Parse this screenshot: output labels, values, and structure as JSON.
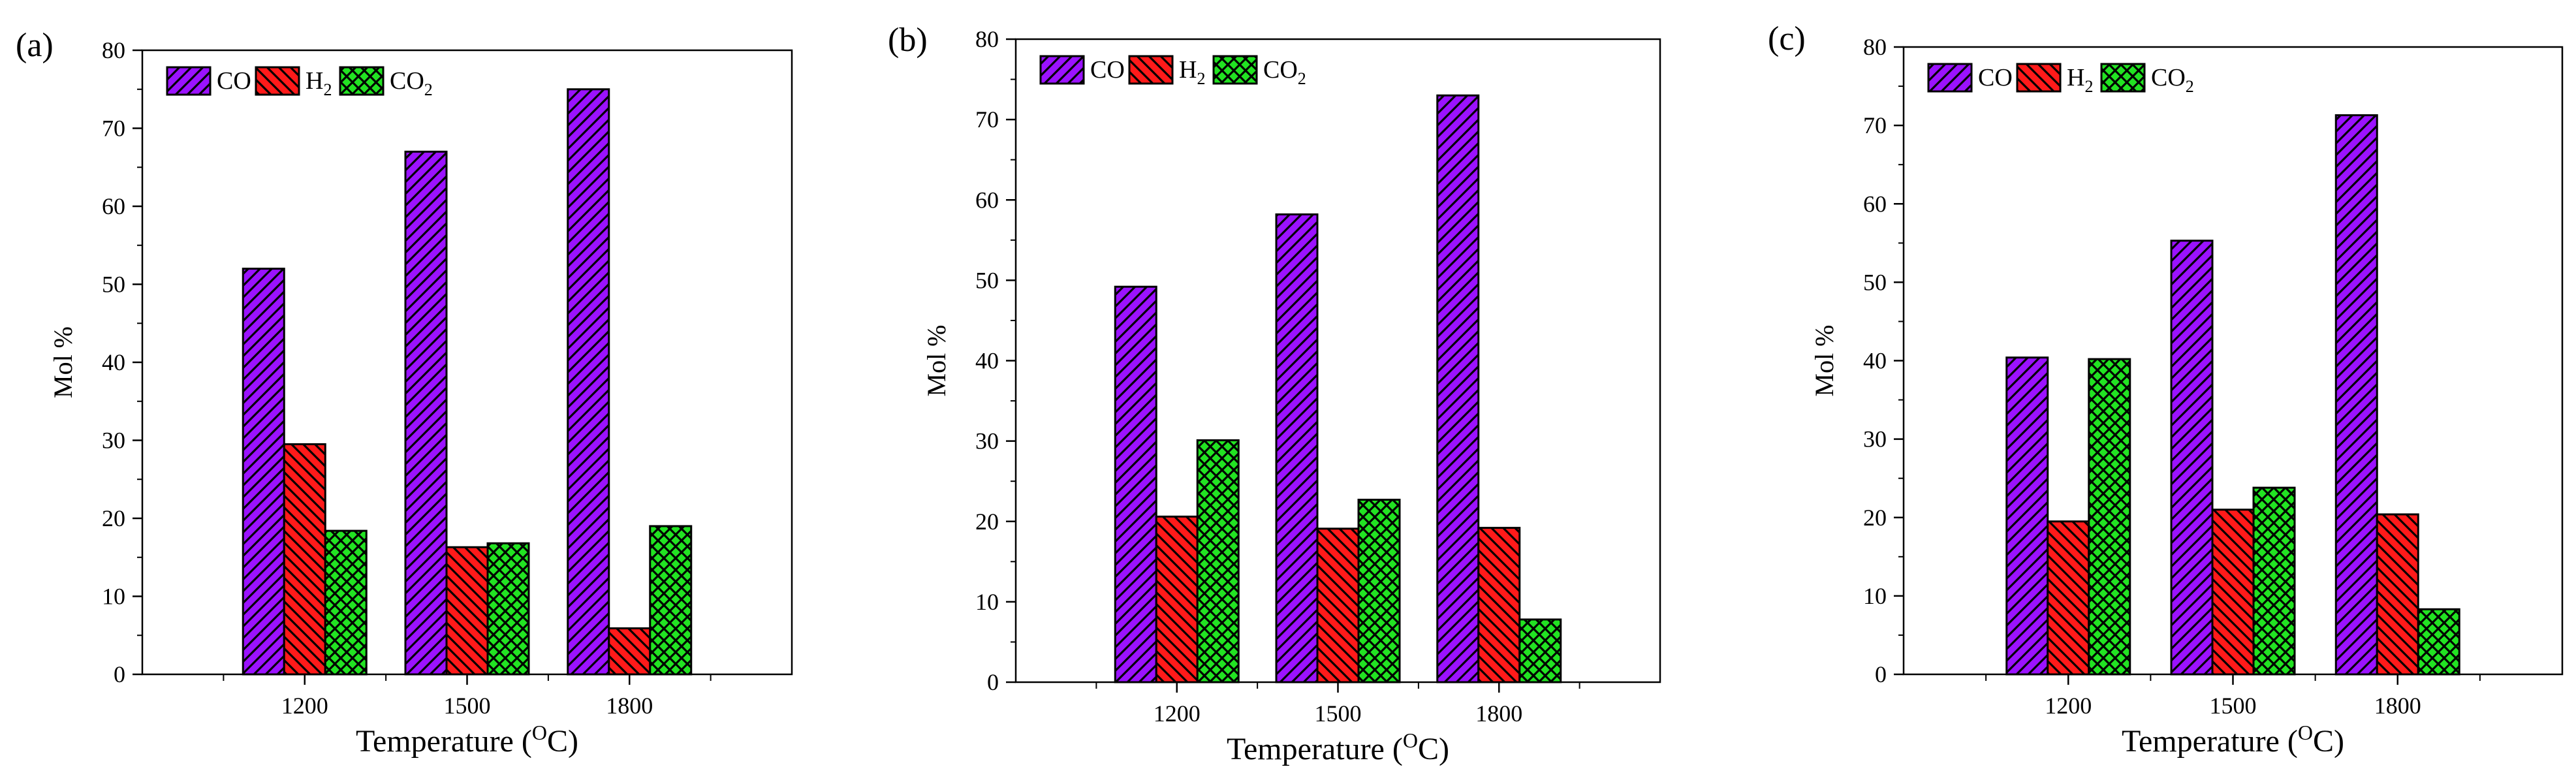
{
  "colors": {
    "co": "#9b12ff",
    "h2": "#ff1a1a",
    "co2": "#22e322",
    "axis": "#000000",
    "background": "#ffffff"
  },
  "patterns": {
    "co": "diagonal-hatch",
    "h2": "back-diagonal-hatch",
    "co2": "crosshatch"
  },
  "chart_data": [
    {
      "type": "bar",
      "panel_label": "(a)",
      "title": "",
      "xlabel": "Temperature",
      "xlabel_unit_prefix": "(",
      "xlabel_unit_sup": "O",
      "xlabel_unit_suffix": "C)",
      "ylabel": "Mol %",
      "ylim": [
        0,
        80
      ],
      "yticks": [
        "0",
        "10",
        "20",
        "30",
        "40",
        "50",
        "60",
        "70",
        "80"
      ],
      "categories": [
        "1200",
        "1500",
        "1800"
      ],
      "legend": {
        "position": "top-left",
        "entries": [
          {
            "key": "co",
            "label": "CO",
            "sub": ""
          },
          {
            "key": "h2",
            "label": "H",
            "sub": "2"
          },
          {
            "key": "co2",
            "label": "CO",
            "sub": "2"
          }
        ]
      },
      "series": [
        {
          "key": "co",
          "name": "CO",
          "values": [
            52.0,
            67.0,
            75.0
          ]
        },
        {
          "key": "h2",
          "name": "H2",
          "values": [
            29.5,
            16.3,
            5.9
          ]
        },
        {
          "key": "co2",
          "name": "CO2",
          "values": [
            18.4,
            16.8,
            19.0
          ]
        }
      ]
    },
    {
      "type": "bar",
      "panel_label": "(b)",
      "title": "",
      "xlabel": "Temperature",
      "xlabel_unit_prefix": "(",
      "xlabel_unit_sup": "O",
      "xlabel_unit_suffix": "C)",
      "ylabel": "Mol %",
      "ylim": [
        0,
        80
      ],
      "yticks": [
        "0",
        "10",
        "20",
        "30",
        "40",
        "50",
        "60",
        "70",
        "80"
      ],
      "categories": [
        "1200",
        "1500",
        "1800"
      ],
      "legend": {
        "position": "top-left",
        "entries": [
          {
            "key": "co",
            "label": "CO",
            "sub": ""
          },
          {
            "key": "h2",
            "label": "H",
            "sub": "2"
          },
          {
            "key": "co2",
            "label": "CO",
            "sub": "2"
          }
        ]
      },
      "series": [
        {
          "key": "co",
          "name": "CO",
          "values": [
            49.2,
            58.2,
            73.0
          ]
        },
        {
          "key": "h2",
          "name": "H2",
          "values": [
            20.6,
            19.1,
            19.2
          ]
        },
        {
          "key": "co2",
          "name": "CO2",
          "values": [
            30.1,
            22.7,
            7.8
          ]
        }
      ]
    },
    {
      "type": "bar",
      "panel_label": "(c)",
      "title": "",
      "xlabel": "Temperature",
      "xlabel_unit_prefix": "(",
      "xlabel_unit_sup": "O",
      "xlabel_unit_suffix": "C)",
      "ylabel": "Mol %",
      "ylim": [
        0,
        80
      ],
      "yticks": [
        "0",
        "10",
        "20",
        "30",
        "40",
        "50",
        "60",
        "70",
        "80"
      ],
      "categories": [
        "1200",
        "1500",
        "1800"
      ],
      "legend": {
        "position": "top-left",
        "entries": [
          {
            "key": "co",
            "label": "CO",
            "sub": ""
          },
          {
            "key": "h2",
            "label": "H",
            "sub": "2"
          },
          {
            "key": "co2",
            "label": "CO",
            "sub": "2"
          }
        ]
      },
      "series": [
        {
          "key": "co",
          "name": "CO",
          "values": [
            40.4,
            55.3,
            71.3
          ]
        },
        {
          "key": "h2",
          "name": "H2",
          "values": [
            19.5,
            21.0,
            20.4
          ]
        },
        {
          "key": "co2",
          "name": "CO2",
          "values": [
            40.2,
            23.8,
            8.3
          ]
        }
      ]
    }
  ]
}
